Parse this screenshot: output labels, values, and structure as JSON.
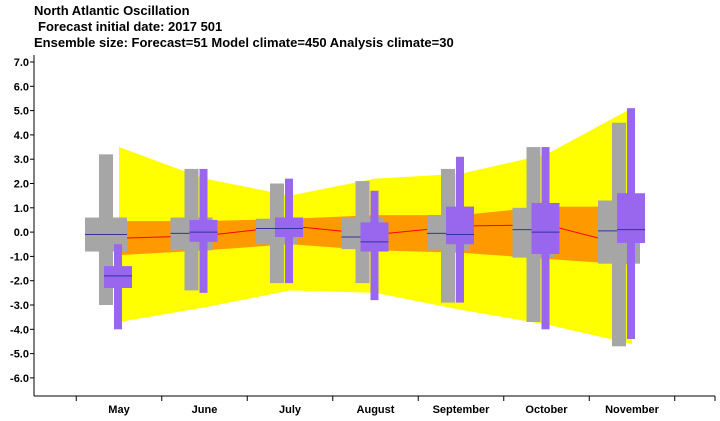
{
  "title": "North Atlantic Oscillation",
  "subtitle1": "Forecast initial date: 2017 501",
  "subtitle2": "Ensemble size: Forecast=51 Model climate=450 Analysis climate=30",
  "colors": {
    "climate_outer": "#ffff00",
    "climate_inner": "#ff9900",
    "climate_median": "#ff0000",
    "model_box": "#a6a6a6",
    "forecast_box": "#9966ee",
    "median_line": "#333399"
  },
  "chart_data": {
    "type": "box",
    "categories": [
      "May",
      "June",
      "July",
      "August",
      "September",
      "October",
      "November"
    ],
    "ylim": [
      -7,
      7
    ],
    "yticks": [
      "7.0",
      "6.0",
      "5.0",
      "4.0",
      "3.0",
      "2.0",
      "1.0",
      "0.0",
      "-1.0",
      "-2.0",
      "-3.0",
      "-4.0",
      "-5.0",
      "-6.0"
    ],
    "climate_band": {
      "outer_upper": [
        3.5,
        2.2,
        1.5,
        2.2,
        2.4,
        3.2,
        5.1
      ],
      "outer_lower": [
        -3.7,
        -3.1,
        -2.4,
        -2.5,
        -3.2,
        -3.8,
        -4.6
      ],
      "inner_upper": [
        0.45,
        0.45,
        0.55,
        0.7,
        0.7,
        1.05,
        1.05
      ],
      "inner_lower": [
        -0.95,
        -0.75,
        -0.5,
        -0.75,
        -0.85,
        -1.1,
        -1.35
      ],
      "median": [
        -0.25,
        -0.15,
        0.25,
        -0.1,
        0.25,
        0.3,
        -0.6
      ]
    },
    "model_climate": [
      {
        "whisker": [
          -3.0,
          3.2
        ],
        "box": [
          -0.8,
          0.6
        ],
        "median": -0.1
      },
      {
        "whisker": [
          -2.4,
          2.6
        ],
        "box": [
          -0.75,
          0.6
        ],
        "median": -0.05
      },
      {
        "whisker": [
          -2.1,
          2.0
        ],
        "box": [
          -0.5,
          0.55
        ],
        "median": 0.15
      },
      {
        "whisker": [
          -2.1,
          2.1
        ],
        "box": [
          -0.7,
          0.6
        ],
        "median": -0.2
      },
      {
        "whisker": [
          -2.9,
          2.6
        ],
        "box": [
          -0.75,
          0.7
        ],
        "median": -0.05
      },
      {
        "whisker": [
          -3.7,
          3.5
        ],
        "box": [
          -1.05,
          1.0
        ],
        "median": 0.1
      },
      {
        "whisker": [
          -4.7,
          4.5
        ],
        "box": [
          -1.3,
          1.3
        ],
        "median": 0.05
      }
    ],
    "forecast": [
      {
        "whisker": [
          -4.0,
          -0.5
        ],
        "box": [
          -2.3,
          -1.4
        ],
        "median": -1.8
      },
      {
        "whisker": [
          -2.5,
          2.6
        ],
        "box": [
          -0.4,
          0.5
        ],
        "median": 0.0
      },
      {
        "whisker": [
          -2.1,
          2.2
        ],
        "box": [
          -0.2,
          0.6
        ],
        "median": 0.15
      },
      {
        "whisker": [
          -2.8,
          1.7
        ],
        "box": [
          -0.8,
          0.4
        ],
        "median": -0.4
      },
      {
        "whisker": [
          -2.9,
          3.1
        ],
        "box": [
          -0.5,
          1.05
        ],
        "median": -0.1
      },
      {
        "whisker": [
          -4.0,
          3.5
        ],
        "box": [
          -0.9,
          1.2
        ],
        "median": 0.0
      },
      {
        "whisker": [
          -4.4,
          5.1
        ],
        "box": [
          -0.45,
          1.6
        ],
        "median": 0.1
      }
    ]
  }
}
